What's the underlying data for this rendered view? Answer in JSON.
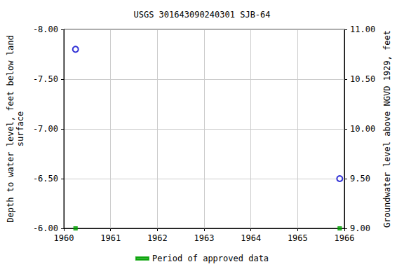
{
  "chart_data": {
    "type": "scatter",
    "title": "USGS 301643090240301 SJB-64",
    "x_label": "",
    "y_label": "Depth to water level, feet below land\nsurface",
    "y2_label": "Groundwater level above NGVD 1929, feet",
    "x": [
      1960.25,
      1965.9
    ],
    "series": [
      {
        "values": [
          -7.8,
          -6.5
        ],
        "color": "#0000cc",
        "marker": "circle-open"
      },
      {
        "name": "Period of approved data",
        "values": [
          -6.0,
          -6.0
        ],
        "color": "#00a000",
        "marker": "square"
      }
    ],
    "xlim": [
      1960,
      1966
    ],
    "xticks": [
      1960,
      1961,
      1962,
      1963,
      1964,
      1965,
      1966
    ],
    "ylim": [
      -6.0,
      -8.0
    ],
    "yticks": [
      {
        "value": -8.0,
        "label": "-8.00"
      },
      {
        "value": -7.5,
        "label": "-7.50"
      },
      {
        "value": -7.0,
        "label": "-7.00"
      },
      {
        "value": -6.5,
        "label": "-6.50"
      },
      {
        "value": -6.0,
        "label": "-6.00"
      }
    ],
    "y2lim": [
      9.0,
      11.0
    ],
    "y2ticks": [
      {
        "value": 9.0,
        "label": "9.00"
      },
      {
        "value": 9.5,
        "label": "9.50"
      },
      {
        "value": 10.0,
        "label": "10.00"
      },
      {
        "value": 10.5,
        "label": "10.50"
      },
      {
        "value": 11.0,
        "label": "11.00"
      }
    ],
    "grid": true,
    "legend": "bottom"
  }
}
